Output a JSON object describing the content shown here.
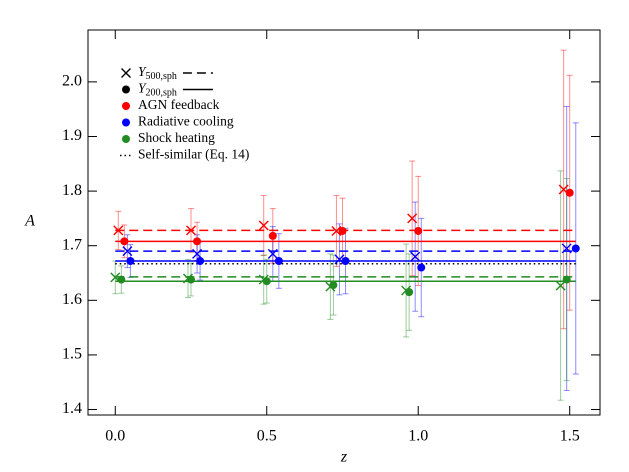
{
  "chart_data": {
    "type": "errorbar",
    "xlabel": "z",
    "ylabel": "A",
    "xlim": [
      -0.09,
      1.6
    ],
    "ylim": [
      1.39,
      2.095
    ],
    "xticks": [
      {
        "value": 0,
        "label": "0.0"
      },
      {
        "value": 0.5,
        "label": "0.5"
      },
      {
        "value": 1,
        "label": "1.0"
      },
      {
        "value": 1.5,
        "label": "1.5"
      }
    ],
    "yticks": [
      1.4,
      1.5,
      1.6,
      1.7,
      1.8,
      1.9,
      {
        "value": 2,
        "label": "2.0"
      }
    ],
    "definitions": [
      {
        "symbol": "Y",
        "subscript": "500,sph",
        "marker": "cross",
        "line": "dashed"
      },
      {
        "symbol": "Y",
        "subscript": "200,sph",
        "marker": "dot",
        "line": "solid"
      }
    ],
    "models": [
      {
        "name": "AGN feedback",
        "color": "#ff0000",
        "series": [
          {
            "x": [
              0.01,
              0.25,
              0.49,
              0.73,
              0.98,
              1.48
            ],
            "values": [
              1.728,
              1.728,
              1.737,
              1.727,
              1.75,
              1.803
            ],
            "errors": [
              0.035,
              0.04,
              0.055,
              0.065,
              0.105,
              0.255
            ],
            "fit": 1.728
          },
          {
            "x": [
              0.03,
              0.27,
              0.52,
              0.75,
              1.0,
              1.5
            ],
            "values": [
              1.708,
              1.708,
              1.718,
              1.727,
              1.727,
              1.797
            ],
            "errors": [
              0.03,
              0.035,
              0.05,
              0.06,
              0.1,
              0.215
            ],
            "fit": 1.708
          }
        ]
      },
      {
        "name": "Radiative cooling",
        "color": "#0000ff",
        "series": [
          {
            "x": [
              0.04,
              0.27,
              0.52,
              0.74,
              0.99,
              1.49
            ],
            "values": [
              1.69,
              1.685,
              1.685,
              1.675,
              1.68,
              1.695
            ],
            "errors": [
              0.03,
              0.035,
              0.05,
              0.065,
              0.1,
              0.26
            ],
            "fit": 1.69
          },
          {
            "x": [
              0.05,
              0.28,
              0.54,
              0.76,
              1.01,
              1.52
            ],
            "values": [
              1.672,
              1.672,
              1.672,
              1.672,
              1.66,
              1.695
            ],
            "errors": [
              0.03,
              0.035,
              0.05,
              0.06,
              0.09,
              0.23
            ],
            "fit": 1.672
          }
        ]
      },
      {
        "name": "Shock heating",
        "color": "#228b22",
        "series": [
          {
            "x": [
              0.0,
              0.24,
              0.49,
              0.71,
              0.96,
              1.47
            ],
            "values": [
              1.642,
              1.64,
              1.638,
              1.625,
              1.618,
              1.627
            ],
            "errors": [
              0.03,
              0.035,
              0.045,
              0.06,
              0.085,
              0.21
            ],
            "fit": 1.643
          },
          {
            "x": [
              0.02,
              0.25,
              0.5,
              0.72,
              0.97,
              1.49
            ],
            "values": [
              1.638,
              1.638,
              1.635,
              1.628,
              1.615,
              1.638
            ],
            "errors": [
              0.025,
              0.03,
              0.04,
              0.055,
              0.07,
              0.185
            ],
            "fit": 1.635
          }
        ]
      }
    ],
    "reference": {
      "label": "Self-similar (Eq. 14)",
      "value": 1.667,
      "color": "#000000"
    }
  }
}
